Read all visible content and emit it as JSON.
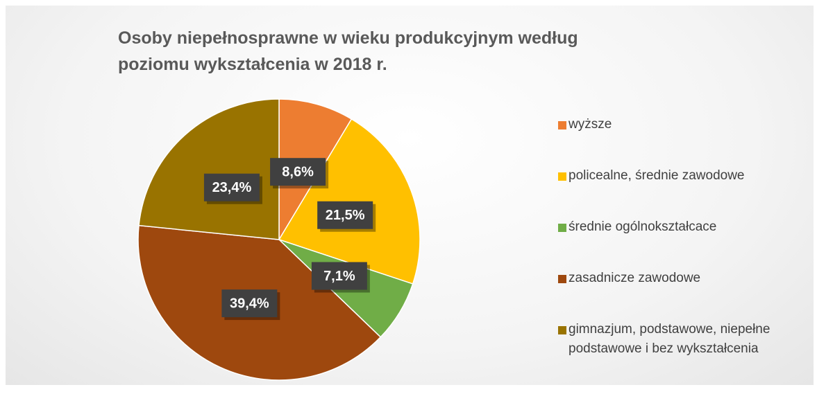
{
  "chart_data": {
    "type": "pie",
    "title": "Osoby niepełnosprawne w wieku produkcyjnym według poziomu wykształcenia w 2018 r.",
    "categories": [
      "wyższe",
      "policealne, średnie zawodowe",
      "średnie ogólnokształcace",
      "zasadnicze zawodowe",
      "gimnazjum, podstawowe, niepełne podstawowe i bez wykształcenia"
    ],
    "values": [
      8.6,
      21.5,
      7.1,
      39.4,
      23.4
    ],
    "value_labels": [
      "8,6%",
      "21,5%",
      "7,1%",
      "39,4%",
      "23,4%"
    ],
    "colors": [
      "#ED7D31",
      "#FFC000",
      "#70AD47",
      "#9E480E",
      "#997300"
    ],
    "legend": "right"
  }
}
